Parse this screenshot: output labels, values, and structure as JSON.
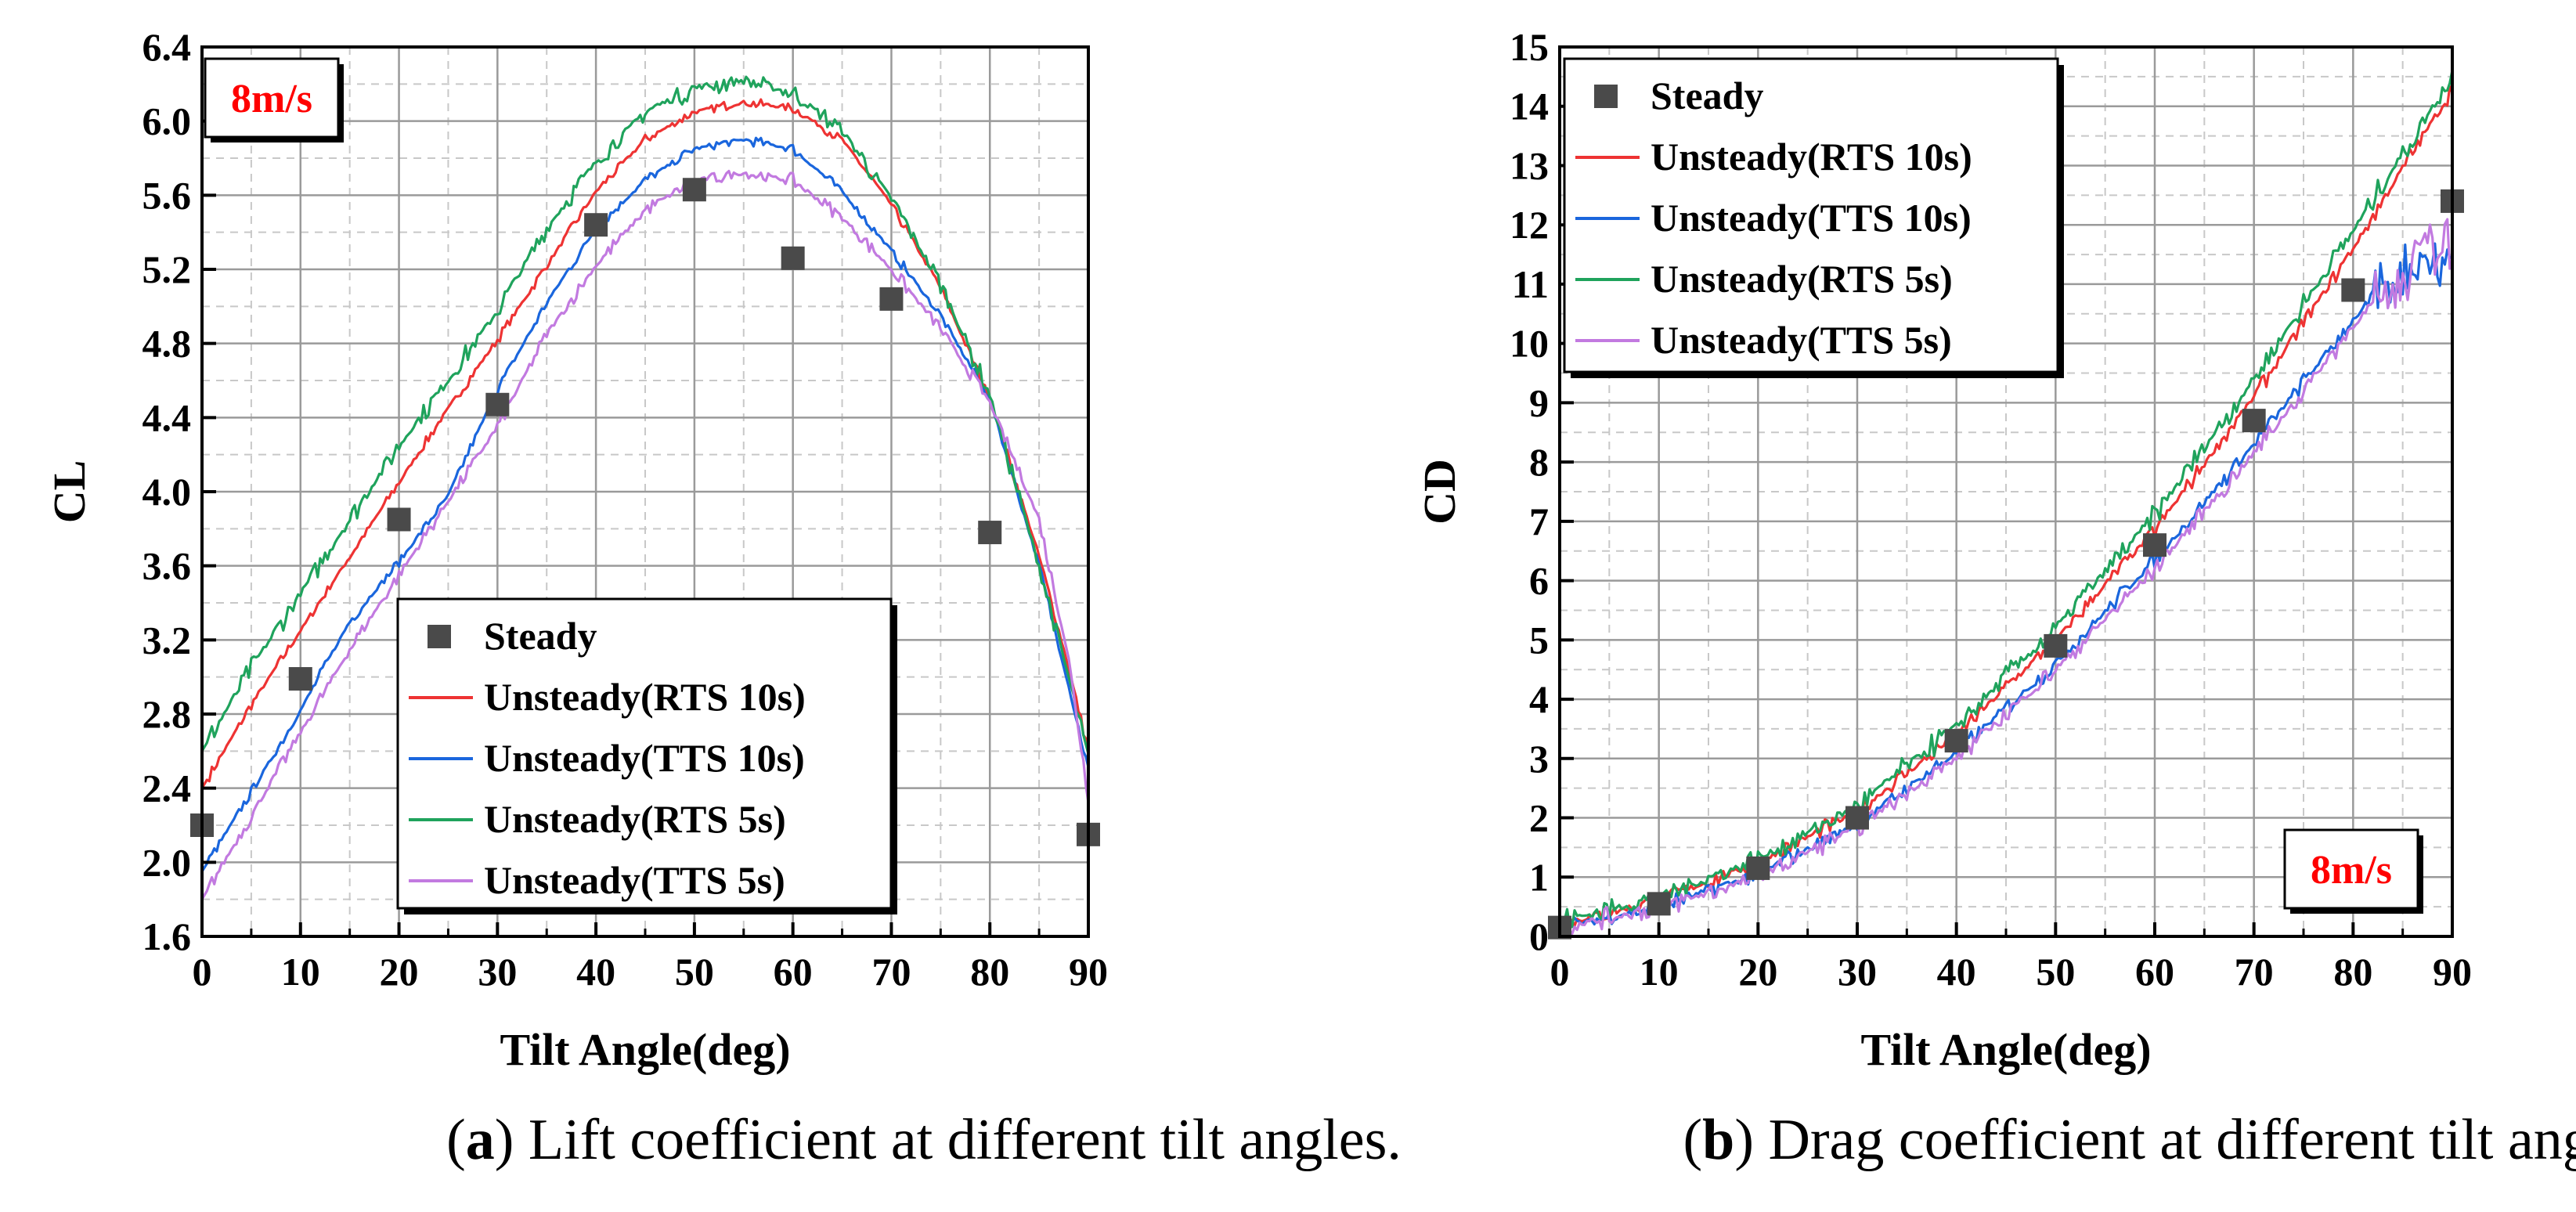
{
  "figure": {
    "captions": [
      {
        "letter": "a",
        "text": " Lift coefficient at different tilt angles."
      },
      {
        "letter": "b",
        "text": " Drag coefficient at different tilt angles."
      }
    ]
  },
  "colors": {
    "steady": "#4a4a4a",
    "rts10": "#ee3333",
    "tts10": "#1a66dd",
    "rts5": "#1fa35c",
    "tts5": "#c27ae0",
    "speed": "#ff0000"
  },
  "chart_data": [
    {
      "type": "line",
      "panel": "a",
      "xlabel": "Tilt Angle(deg)",
      "ylabel": "CL",
      "xlim": [
        0,
        90
      ],
      "ylim": [
        1.6,
        6.4
      ],
      "xticks": [
        0,
        10,
        20,
        30,
        40,
        50,
        60,
        70,
        80,
        90
      ],
      "xtick_labels": [
        "0",
        "10",
        "20",
        "30",
        "40",
        "50",
        "60",
        "70",
        "80",
        "90"
      ],
      "yticks": [
        1.6,
        2.0,
        2.4,
        2.8,
        3.2,
        3.6,
        4.0,
        4.4,
        4.8,
        5.2,
        5.6,
        6.0,
        6.4
      ],
      "ytick_labels": [
        "1.6",
        "2.0",
        "2.4",
        "2.8",
        "3.2",
        "3.6",
        "4.0",
        "4.4",
        "4.8",
        "5.2",
        "5.6",
        "6.0",
        "6.4"
      ],
      "grid": true,
      "annotation": "8m/s",
      "legend": "bottom-center",
      "steady": {
        "name": "Steady",
        "x": [
          0,
          10,
          20,
          30,
          40,
          50,
          60,
          70,
          80,
          90
        ],
        "y": [
          2.2,
          2.99,
          3.85,
          4.47,
          5.44,
          5.63,
          5.26,
          5.04,
          3.78,
          2.15
        ]
      },
      "series": [
        {
          "name": "Unsteady(RTS 10s)",
          "key": "rts10",
          "noise": 0.03,
          "x": [
            0,
            5,
            10,
            15,
            20,
            25,
            30,
            35,
            40,
            45,
            50,
            55,
            60,
            65,
            70,
            75,
            80,
            85,
            88,
            90
          ],
          "y": [
            2.4,
            2.85,
            3.25,
            3.65,
            4.05,
            4.45,
            4.82,
            5.22,
            5.62,
            5.9,
            6.05,
            6.1,
            6.07,
            5.9,
            5.55,
            5.1,
            4.5,
            3.65,
            3.05,
            2.6
          ]
        },
        {
          "name": "Unsteady(TTS 10s)",
          "key": "tts10",
          "noise": 0.03,
          "x": [
            0,
            5,
            10,
            15,
            20,
            25,
            30,
            35,
            40,
            45,
            50,
            55,
            60,
            65,
            70,
            75,
            80,
            85,
            88,
            90
          ],
          "y": [
            1.95,
            2.38,
            2.82,
            3.3,
            3.62,
            3.98,
            4.55,
            5.02,
            5.42,
            5.68,
            5.85,
            5.9,
            5.85,
            5.62,
            5.3,
            4.95,
            4.5,
            3.6,
            2.95,
            2.5
          ]
        },
        {
          "name": "Unsteady(RTS 5s)",
          "key": "rts5",
          "noise": 0.06,
          "x": [
            0,
            5,
            10,
            15,
            20,
            25,
            30,
            35,
            40,
            45,
            50,
            55,
            60,
            65,
            70,
            75,
            80,
            85,
            88,
            90
          ],
          "y": [
            2.6,
            3.05,
            3.45,
            3.85,
            4.25,
            4.6,
            4.98,
            5.42,
            5.78,
            6.05,
            6.18,
            6.22,
            6.15,
            5.95,
            5.58,
            5.12,
            4.52,
            3.6,
            3.0,
            2.55
          ]
        },
        {
          "name": "Unsteady(TTS 5s)",
          "key": "tts5",
          "noise": 0.04,
          "x": [
            0,
            5,
            10,
            15,
            20,
            25,
            30,
            35,
            40,
            45,
            50,
            55,
            60,
            65,
            70,
            75,
            80,
            85,
            88,
            90
          ],
          "y": [
            1.8,
            2.25,
            2.7,
            3.15,
            3.55,
            3.95,
            4.35,
            4.85,
            5.22,
            5.52,
            5.68,
            5.72,
            5.68,
            5.48,
            5.2,
            4.88,
            4.48,
            3.85,
            3.1,
            2.35
          ]
        }
      ]
    },
    {
      "type": "line",
      "panel": "b",
      "xlabel": "Tilt Angle(deg)",
      "ylabel": "CD",
      "xlim": [
        0,
        90
      ],
      "ylim": [
        0,
        15
      ],
      "xticks": [
        0,
        10,
        20,
        30,
        40,
        50,
        60,
        70,
        80,
        90
      ],
      "xtick_labels": [
        "0",
        "10",
        "20",
        "30",
        "40",
        "50",
        "60",
        "70",
        "80",
        "90"
      ],
      "yticks": [
        0,
        1,
        2,
        3,
        4,
        5,
        6,
        7,
        8,
        9,
        10,
        11,
        12,
        13,
        14,
        15
      ],
      "ytick_labels": [
        "0",
        "1",
        "2",
        "3",
        "4",
        "5",
        "6",
        "7",
        "8",
        "9",
        "10",
        "11",
        "12",
        "13",
        "14",
        "15"
      ],
      "grid": true,
      "annotation": "8m/s",
      "legend": "top-left",
      "steady": {
        "name": "Steady",
        "x": [
          0,
          10,
          20,
          30,
          40,
          50,
          60,
          70,
          80,
          90
        ],
        "y": [
          0.15,
          0.55,
          1.15,
          2.0,
          3.3,
          4.9,
          6.6,
          8.7,
          10.9,
          12.4
        ]
      },
      "series": [
        {
          "name": "Unsteady(RTS 10s)",
          "key": "rts10",
          "noise": 0.05,
          "x": [
            0,
            10,
            20,
            30,
            40,
            50,
            60,
            70,
            80,
            90
          ],
          "y": [
            0.2,
            0.6,
            1.25,
            2.1,
            3.4,
            5.0,
            6.85,
            9.1,
            11.6,
            14.3
          ]
        },
        {
          "name": "Unsteady(TTS 10s)",
          "key": "tts10",
          "noise": 0.05,
          "x": [
            0,
            10,
            20,
            30,
            40,
            50,
            60,
            70,
            75,
            80,
            84,
            86,
            88,
            90
          ],
          "y": [
            0.15,
            0.5,
            1.05,
            1.9,
            3.1,
            4.6,
            6.35,
            8.3,
            9.35,
            10.4,
            11.1,
            11.3,
            11.5,
            11.5
          ]
        },
        {
          "name": "Unsteady(RTS 5s)",
          "key": "rts5",
          "noise": 0.07,
          "x": [
            0,
            10,
            20,
            30,
            40,
            50,
            60,
            70,
            80,
            90
          ],
          "y": [
            0.25,
            0.65,
            1.3,
            2.2,
            3.55,
            5.2,
            7.1,
            9.4,
            11.9,
            14.5
          ]
        },
        {
          "name": "Unsteady(TTS 5s)",
          "key": "tts5",
          "noise": 0.06,
          "x": [
            0,
            10,
            20,
            30,
            40,
            50,
            60,
            70,
            75,
            80,
            84,
            86,
            88,
            90
          ],
          "y": [
            0.15,
            0.48,
            1.0,
            1.85,
            3.0,
            4.5,
            6.2,
            8.15,
            9.2,
            10.3,
            11.0,
            11.3,
            11.6,
            11.7
          ]
        }
      ]
    }
  ]
}
